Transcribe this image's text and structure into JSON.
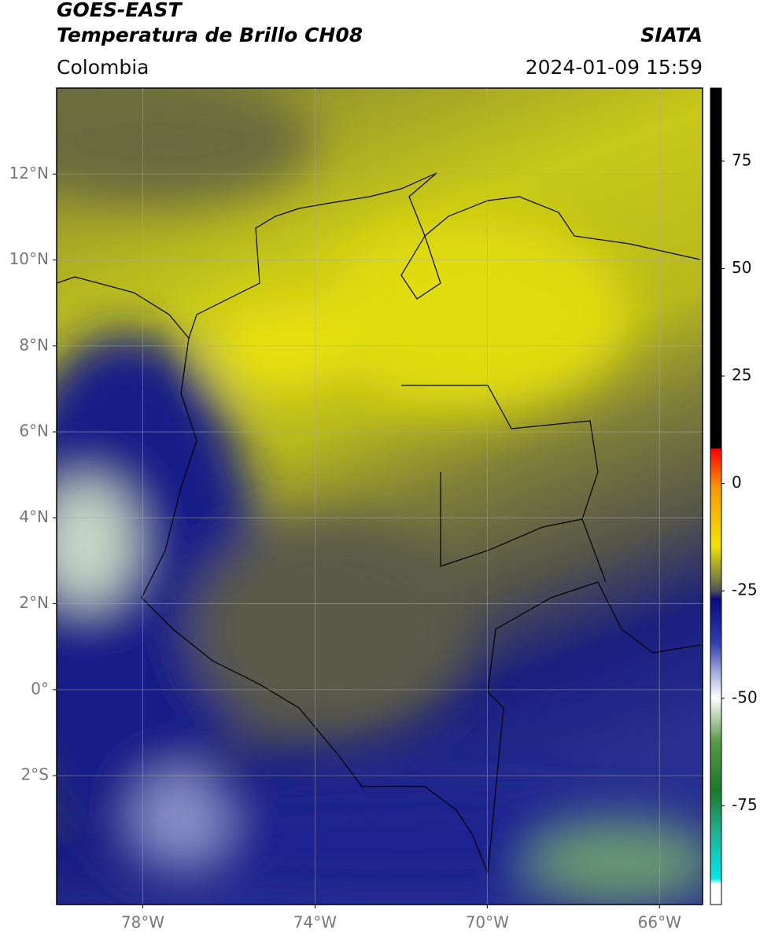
{
  "map": {
    "header": {
      "title": "GOES-EAST",
      "subtitle": "Temperatura de Brillo CH08",
      "source": "SIATA",
      "region": "Colombia",
      "datetime": "2024-01-09 15:59"
    },
    "xlim": [
      -80,
      -65
    ],
    "ylim": [
      -5,
      14
    ],
    "xticks": [
      {
        "value": -78,
        "label": "78°W"
      },
      {
        "value": -74,
        "label": "74°W"
      },
      {
        "value": -70,
        "label": "70°W"
      },
      {
        "value": -66,
        "label": "66°W"
      }
    ],
    "yticks": [
      {
        "value": 12,
        "label": "12°N"
      },
      {
        "value": 10,
        "label": "10°N"
      },
      {
        "value": 8,
        "label": "8°N"
      },
      {
        "value": 6,
        "label": "6°N"
      },
      {
        "value": 4,
        "label": "4°N"
      },
      {
        "value": 2,
        "label": "2°N"
      },
      {
        "value": 0,
        "label": "0°"
      },
      {
        "value": -2,
        "label": "2°S"
      }
    ],
    "grid": true,
    "colorbar": {
      "lim": [
        -98,
        92
      ],
      "ticks": [
        75,
        50,
        25,
        0,
        -25,
        -50,
        -75
      ]
    }
  }
}
